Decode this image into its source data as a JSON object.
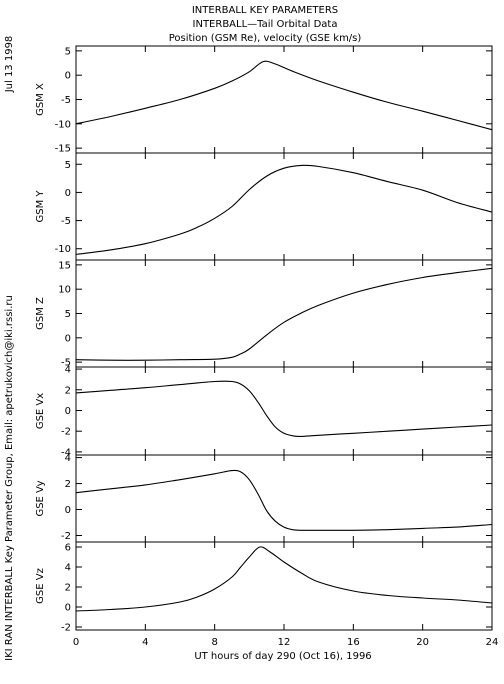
{
  "header": {
    "line1": "INTERBALL KEY PARAMETERS",
    "line2": "INTERBALL—Tail Orbital Data",
    "line3": "Position (GSM Re), velocity (GSE km/s)"
  },
  "side": {
    "date": "Jul 13 1998",
    "credit": "IKI RAN INTERBALL Key Parameter Group, Email: apetrukovich@iki.rssi.ru"
  },
  "chart_data": {
    "type": "line",
    "x_label": "UT hours of day 290 (Oct 16), 1996",
    "x_range": [
      0,
      24
    ],
    "x_ticks": [
      0,
      4,
      8,
      12,
      16,
      20,
      24
    ],
    "panels": [
      {
        "ylabel": "GSM X",
        "ylim": [
          -16,
          6
        ],
        "yticks": [
          -15,
          -10,
          -5,
          0,
          5
        ],
        "x": [
          0,
          2,
          4,
          6,
          8,
          9,
          10,
          10.8,
          11.5,
          12.5,
          14,
          16,
          18,
          20,
          22,
          24
        ],
        "y": [
          -10,
          -8.5,
          -6.8,
          -5,
          -2.7,
          -1.2,
          0.7,
          2.8,
          2.3,
          0.8,
          -1.2,
          -3.5,
          -5.6,
          -7.4,
          -9.3,
          -11.2
        ]
      },
      {
        "ylabel": "GSM Y",
        "ylim": [
          -12,
          7
        ],
        "yticks": [
          -10,
          -5,
          0,
          5
        ],
        "x": [
          0,
          2,
          4,
          6,
          7,
          8,
          9,
          10,
          11,
          12,
          13,
          14,
          16,
          18,
          20,
          22,
          24
        ],
        "y": [
          -11,
          -10.2,
          -9.1,
          -7.4,
          -6.2,
          -4.6,
          -2.5,
          0.5,
          2.9,
          4.3,
          4.8,
          4.6,
          3.5,
          1.9,
          0.4,
          -1.8,
          -3.5
        ]
      },
      {
        "ylabel": "GSM Z",
        "ylim": [
          -6,
          16
        ],
        "yticks": [
          -5,
          0,
          5,
          10,
          15
        ],
        "x": [
          0,
          2,
          4,
          6,
          8,
          9,
          9.5,
          10,
          11,
          12,
          13,
          14,
          16,
          18,
          20,
          22,
          24
        ],
        "y": [
          -4.5,
          -4.6,
          -4.6,
          -4.5,
          -4.4,
          -4,
          -3.3,
          -2.3,
          0.6,
          3.2,
          5.1,
          6.7,
          9.2,
          11,
          12.4,
          13.4,
          14.3
        ]
      },
      {
        "ylabel": "GSE Vx",
        "ylim": [
          -4.3,
          4.2
        ],
        "yticks": [
          -4,
          -2,
          0,
          2,
          4
        ],
        "x": [
          0,
          2,
          4,
          6,
          8,
          9,
          9.5,
          10,
          10.5,
          11,
          11.5,
          12,
          12.5,
          13,
          14,
          16,
          18,
          20,
          22,
          24
        ],
        "y": [
          1.7,
          1.95,
          2.2,
          2.5,
          2.8,
          2.8,
          2.55,
          1.9,
          0.8,
          -0.5,
          -1.6,
          -2.2,
          -2.45,
          -2.5,
          -2.4,
          -2.2,
          -2,
          -1.8,
          -1.6,
          -1.4
        ]
      },
      {
        "ylabel": "GSE Vy",
        "ylim": [
          -2.5,
          4.2
        ],
        "yticks": [
          -2,
          0,
          2,
          4
        ],
        "x": [
          0,
          2,
          4,
          6,
          8,
          9,
          9.5,
          10,
          10.5,
          11,
          11.5,
          12,
          12.5,
          13,
          14,
          16,
          18,
          20,
          22,
          24
        ],
        "y": [
          1.3,
          1.6,
          1.9,
          2.3,
          2.75,
          3,
          2.9,
          2.3,
          1.2,
          -0.1,
          -0.9,
          -1.35,
          -1.55,
          -1.6,
          -1.6,
          -1.6,
          -1.55,
          -1.45,
          -1.35,
          -1.15
        ]
      },
      {
        "ylabel": "GSE Vz",
        "ylim": [
          -2.3,
          6.5
        ],
        "yticks": [
          -2,
          0,
          2,
          4,
          6
        ],
        "x": [
          0,
          2,
          4,
          6,
          7,
          8,
          9,
          9.5,
          10,
          10.6,
          11.2,
          12,
          13,
          14,
          16,
          18,
          20,
          22,
          24
        ],
        "y": [
          -0.4,
          -0.25,
          0,
          0.5,
          1,
          1.8,
          3,
          4,
          5,
          6,
          5.5,
          4.5,
          3.4,
          2.5,
          1.6,
          1.15,
          0.9,
          0.7,
          0.4
        ]
      }
    ]
  }
}
